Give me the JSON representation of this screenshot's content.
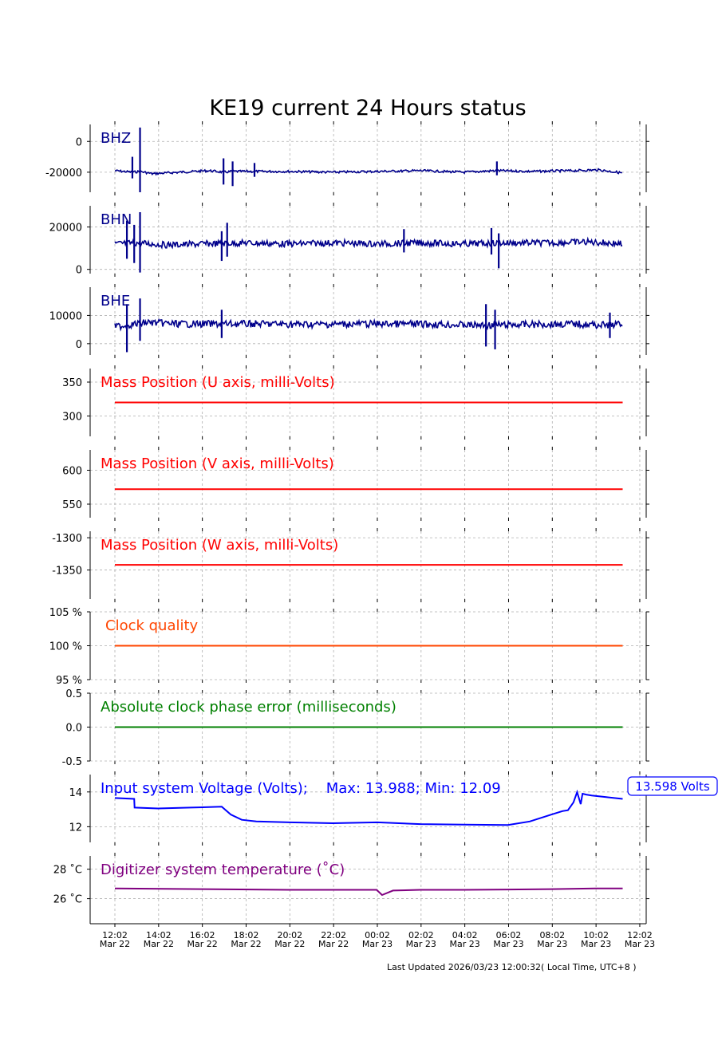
{
  "title": "KE19 current 24 Hours status",
  "footer": "Last Updated 2026/03/23 12:00:32( Local Time, UTC+8 )",
  "colors": {
    "seismic": "#00008b",
    "mass": "#ff0000",
    "clock": "#ff4500",
    "phase": "#008000",
    "voltage": "#0000ff",
    "temperature": "#800080",
    "grid": "#b0b0b0"
  },
  "x_axis": {
    "ticks": [
      {
        "time": "12:02",
        "date": "Mar 22"
      },
      {
        "time": "14:02",
        "date": "Mar 22"
      },
      {
        "time": "16:02",
        "date": "Mar 22"
      },
      {
        "time": "18:02",
        "date": "Mar 22"
      },
      {
        "time": "20:02",
        "date": "Mar 22"
      },
      {
        "time": "22:02",
        "date": "Mar 22"
      },
      {
        "time": "00:02",
        "date": "Mar 23"
      },
      {
        "time": "02:02",
        "date": "Mar 23"
      },
      {
        "time": "04:02",
        "date": "Mar 23"
      },
      {
        "time": "06:02",
        "date": "Mar 23"
      },
      {
        "time": "08:02",
        "date": "Mar 23"
      },
      {
        "time": "10:02",
        "date": "Mar 23"
      },
      {
        "time": "12:02",
        "date": "Mar 23"
      }
    ]
  },
  "chart_data": [
    {
      "type": "line",
      "label": "BHZ",
      "ylim": [
        -33000,
        11000
      ],
      "yticks": [
        {
          "value": 0,
          "label": "0"
        },
        {
          "value": -20000,
          "label": "-20000"
        }
      ],
      "x": [
        "2026-03-22 12:02",
        "2026-03-22 12:50",
        "2026-03-22 13:11",
        "2026-03-22 13:45",
        "2026-03-22 15:00",
        "2026-03-22 16:20",
        "2026-03-22 17:00",
        "2026-03-22 17:25",
        "2026-03-22 18:00",
        "2026-03-22 20:00",
        "2026-03-22 22:00",
        "2026-03-23 00:00",
        "2026-03-23 02:00",
        "2026-03-23 04:00",
        "2026-03-23 05:30",
        "2026-03-23 07:00",
        "2026-03-23 09:00",
        "2026-03-23 10:10",
        "2026-03-23 11:15"
      ],
      "y": [
        -19000,
        -20000,
        -19500,
        -21000,
        -20000,
        -19000,
        -20000,
        -19500,
        -19500,
        -19500,
        -20000,
        -19500,
        -19000,
        -20000,
        -19000,
        -19500,
        -19000,
        -18500,
        -20500
      ],
      "spikes": [
        {
          "x": "2026-03-22 12:50",
          "min": -24000,
          "max": -10000
        },
        {
          "x": "2026-03-22 13:11",
          "min": -33000,
          "max": 9000
        },
        {
          "x": "2026-03-22 17:00",
          "min": -28000,
          "max": -11000
        },
        {
          "x": "2026-03-22 17:25",
          "min": -29000,
          "max": -13000
        },
        {
          "x": "2026-03-22 18:25",
          "min": -23000,
          "max": -14000
        },
        {
          "x": "2026-03-23 05:30",
          "min": -22000,
          "max": -13000
        }
      ],
      "noise": 1500
    },
    {
      "type": "line",
      "label": "BHN",
      "ylim": [
        -2000,
        30000
      ],
      "yticks": [
        {
          "value": 20000,
          "label": "20000"
        },
        {
          "value": 0,
          "label": "0"
        }
      ],
      "x": [
        "2026-03-22 12:02",
        "2026-03-22 13:00",
        "2026-03-22 14:30",
        "2026-03-22 16:00",
        "2026-03-22 18:00",
        "2026-03-22 20:00",
        "2026-03-22 22:00",
        "2026-03-23 00:00",
        "2026-03-23 02:00",
        "2026-03-23 04:00",
        "2026-03-23 06:00",
        "2026-03-23 08:00",
        "2026-03-23 09:30",
        "2026-03-23 10:30",
        "2026-03-23 11:15"
      ],
      "y": [
        12000,
        12500,
        11500,
        12000,
        12500,
        12000,
        12500,
        12000,
        12500,
        12000,
        12500,
        12500,
        13000,
        12500,
        12000
      ],
      "spikes": [
        {
          "x": "2026-03-22 12:35",
          "min": 5000,
          "max": 23000
        },
        {
          "x": "2026-03-22 12:55",
          "min": 3000,
          "max": 21000
        },
        {
          "x": "2026-03-22 13:11",
          "min": -1500,
          "max": 27000
        },
        {
          "x": "2026-03-22 16:55",
          "min": 4000,
          "max": 18000
        },
        {
          "x": "2026-03-22 17:10",
          "min": 6000,
          "max": 22000
        },
        {
          "x": "2026-03-23 01:15",
          "min": 8000,
          "max": 19000
        },
        {
          "x": "2026-03-23 05:15",
          "min": 7000,
          "max": 19500
        },
        {
          "x": "2026-03-23 05:35",
          "min": 500,
          "max": 17000
        }
      ],
      "noise": 3000
    },
    {
      "type": "line",
      "label": "BHE",
      "ylim": [
        -4000,
        20000
      ],
      "yticks": [
        {
          "value": 10000,
          "label": "10000"
        },
        {
          "value": 0,
          "label": "0"
        }
      ],
      "x": [
        "2026-03-22 12:02",
        "2026-03-22 13:30",
        "2026-03-22 15:00",
        "2026-03-22 17:00",
        "2026-03-22 19:00",
        "2026-03-22 21:00",
        "2026-03-22 23:00",
        "2026-03-23 01:00",
        "2026-03-23 03:00",
        "2026-03-23 05:00",
        "2026-03-23 07:00",
        "2026-03-23 09:00",
        "2026-03-23 10:30",
        "2026-03-23 11:15"
      ],
      "y": [
        6000,
        7500,
        7000,
        7000,
        7000,
        6800,
        7000,
        7000,
        6800,
        6500,
        6800,
        7000,
        6500,
        7000
      ],
      "spikes": [
        {
          "x": "2026-03-22 12:35",
          "min": -3000,
          "max": 14000
        },
        {
          "x": "2026-03-22 13:11",
          "min": 1000,
          "max": 16000
        },
        {
          "x": "2026-03-22 16:55",
          "min": 2000,
          "max": 12000
        },
        {
          "x": "2026-03-23 05:00",
          "min": -1000,
          "max": 14000
        },
        {
          "x": "2026-03-23 05:25",
          "min": -2000,
          "max": 12000
        },
        {
          "x": "2026-03-23 10:40",
          "min": 2000,
          "max": 11000
        }
      ],
      "noise": 2500
    },
    {
      "type": "line",
      "label": "Mass Position (U axis, milli-Volts)",
      "ylim": [
        270,
        370
      ],
      "yticks": [
        {
          "value": 350,
          "label": "350"
        },
        {
          "value": 300,
          "label": "300"
        }
      ],
      "x": [
        "2026-03-22 12:02",
        "2026-03-23 11:15"
      ],
      "y": [
        320,
        320
      ]
    },
    {
      "type": "line",
      "label": "Mass Position (V axis, milli-Volts)",
      "ylim": [
        530,
        630
      ],
      "yticks": [
        {
          "value": 600,
          "label": "600"
        },
        {
          "value": 550,
          "label": "550"
        }
      ],
      "x": [
        "2026-03-22 12:02",
        "2026-03-23 11:15"
      ],
      "y": [
        572,
        572
      ]
    },
    {
      "type": "line",
      "label": "Mass Position (W axis, milli-Volts)",
      "ylim": [
        -1395,
        -1290
      ],
      "yticks": [
        {
          "value": -1300,
          "label": "-1300"
        },
        {
          "value": -1350,
          "label": "-1350"
        }
      ],
      "x": [
        "2026-03-22 12:02",
        "2026-03-23 11:15"
      ],
      "y": [
        -1342,
        -1342
      ]
    },
    {
      "type": "line",
      "label": "Clock quality",
      "ylim": [
        95,
        105
      ],
      "yticks": [
        {
          "value": 105,
          "label": "105 %"
        },
        {
          "value": 100,
          "label": "100 %"
        },
        {
          "value": 95,
          "label": "95 %"
        }
      ],
      "x": [
        "2026-03-22 12:02",
        "2026-03-23 11:15"
      ],
      "y": [
        100,
        100
      ]
    },
    {
      "type": "line",
      "label": "Absolute clock phase error (milliseconds)",
      "ylim": [
        -0.5,
        0.5
      ],
      "yticks": [
        {
          "value": 0.5,
          "label": "0.5"
        },
        {
          "value": 0.0,
          "label": "0.0"
        },
        {
          "value": -0.5,
          "label": "-0.5"
        }
      ],
      "x": [
        "2026-03-22 12:02",
        "2026-03-23 11:15"
      ],
      "y": [
        0,
        0
      ]
    },
    {
      "type": "line",
      "label": "Input system Voltage (Volts);    Max: 13.988; Min: 12.09",
      "current_value_label": "13.598 Volts",
      "ylim": [
        11.1,
        15.0
      ],
      "yticks": [
        {
          "value": 14,
          "label": "14"
        },
        {
          "value": 12,
          "label": "12"
        }
      ],
      "x": [
        "2026-03-22 12:02",
        "2026-03-22 12:55",
        "2026-03-22 12:56",
        "2026-03-22 14:00",
        "2026-03-22 15:30",
        "2026-03-22 16:55",
        "2026-03-22 17:20",
        "2026-03-22 17:50",
        "2026-03-22 18:30",
        "2026-03-22 20:00",
        "2026-03-22 22:00",
        "2026-03-23 00:02",
        "2026-03-23 02:00",
        "2026-03-23 04:00",
        "2026-03-23 06:00",
        "2026-03-23 07:00",
        "2026-03-23 08:00",
        "2026-03-23 08:30",
        "2026-03-23 08:45",
        "2026-03-23 09:00",
        "2026-03-23 09:10",
        "2026-03-23 09:20",
        "2026-03-23 09:25",
        "2026-03-23 09:35",
        "2026-03-23 09:50",
        "2026-03-23 10:30",
        "2026-03-23 11:15"
      ],
      "y": [
        13.65,
        13.6,
        13.1,
        13.05,
        13.1,
        13.15,
        12.7,
        12.4,
        12.3,
        12.25,
        12.2,
        12.25,
        12.15,
        12.12,
        12.1,
        12.3,
        12.7,
        12.9,
        12.95,
        13.4,
        13.99,
        13.3,
        13.9,
        13.85,
        13.8,
        13.7,
        13.6
      ]
    },
    {
      "type": "line",
      "label": "Digitizer system temperature ( $^\\circ$C)",
      "label_display": "Digitizer system temperature (˚C)",
      "ylim": [
        24.3,
        28.9
      ],
      "yticks": [
        {
          "value": 28,
          "label": "28 ˚C"
        },
        {
          "value": 26,
          "label": "26 ˚C"
        }
      ],
      "x": [
        "2026-03-22 12:02",
        "2026-03-22 16:00",
        "2026-03-22 20:00",
        "2026-03-23 00:00",
        "2026-03-23 00:15",
        "2026-03-23 00:45",
        "2026-03-23 02:00",
        "2026-03-23 04:00",
        "2026-03-23 06:00",
        "2026-03-23 08:00",
        "2026-03-23 10:00",
        "2026-03-23 11:15"
      ],
      "y": [
        26.7,
        26.65,
        26.6,
        26.6,
        26.25,
        26.55,
        26.6,
        26.6,
        26.62,
        26.65,
        26.7,
        26.7
      ]
    }
  ]
}
